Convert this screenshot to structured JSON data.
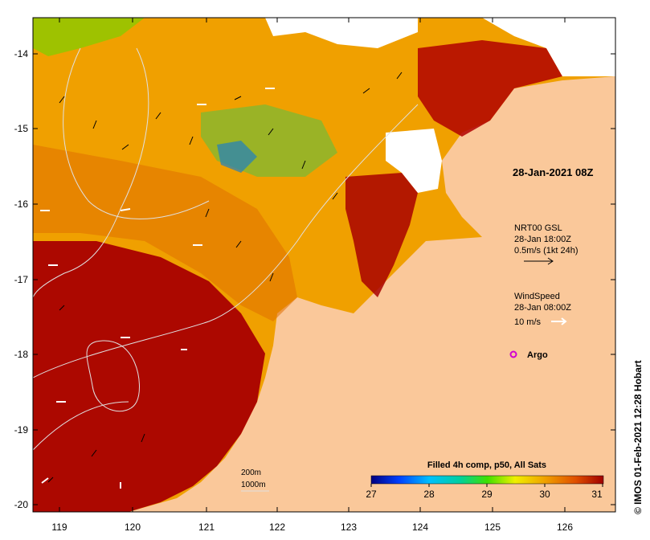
{
  "map": {
    "date_label": "28-Jan-2021 08Z",
    "current_legend": {
      "line1": "NRT00 GSL",
      "line2": "28-Jan 18:00Z",
      "line3": "0.5m/s (1kt 24h)"
    },
    "wind_legend": {
      "line1": "WindSpeed",
      "line2": "28-Jan 08:00Z",
      "line3": "10 m/s"
    },
    "argo_label": "Argo",
    "bathy": {
      "contour1": "200m",
      "contour2": "1000m"
    },
    "colorbar": {
      "title": "Filled 4h comp, p50, All Sats",
      "ticks": [
        "27",
        "28",
        "29",
        "30",
        "31"
      ]
    },
    "credit": "© IMOS 01-Feb-2021 12:28 Hobart",
    "lon_ticks": [
      "119",
      "120",
      "121",
      "122",
      "123",
      "124",
      "125",
      "126"
    ],
    "lat_ticks": [
      "-14",
      "-15",
      "-16",
      "-17",
      "-18",
      "-19",
      "-20"
    ],
    "colors": {
      "land": "#fac89a",
      "sst_hot": "#a80000",
      "sst_warm": "#e67800",
      "sst_mid": "#f0a000",
      "cloud": "#ffffff",
      "argo": "#d000d0"
    }
  }
}
